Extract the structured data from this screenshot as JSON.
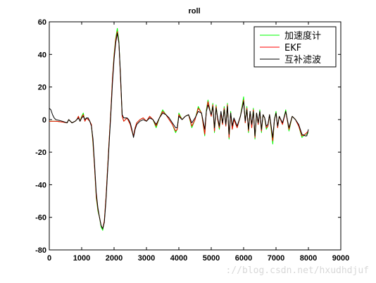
{
  "chart_data": {
    "type": "line",
    "title": "roll",
    "xlabel": "",
    "ylabel": "",
    "xlim": [
      0,
      9000
    ],
    "ylim": [
      -80,
      60
    ],
    "xticks": [
      0,
      1000,
      2000,
      3000,
      4000,
      5000,
      6000,
      7000,
      8000,
      9000
    ],
    "yticks": [
      -80,
      -60,
      -40,
      -20,
      0,
      20,
      40,
      60
    ],
    "xtick_labels": [
      "0",
      "1000",
      "2000",
      "3000",
      "4000",
      "5000",
      "6000",
      "7000",
      "8000",
      "9000"
    ],
    "ytick_labels": [
      "-80",
      "-60",
      "-40",
      "-20",
      "0",
      "20",
      "40",
      "60"
    ],
    "grid": false,
    "legend_position": "top-right",
    "series": [
      {
        "name": "加速度计",
        "color": "#00ff00",
        "x": [
          0,
          200,
          400,
          550,
          600,
          650,
          700,
          800,
          850,
          900,
          950,
          1000,
          1050,
          1100,
          1150,
          1200,
          1250,
          1300,
          1350,
          1400,
          1450,
          1500,
          1550,
          1600,
          1650,
          1700,
          1750,
          1800,
          1850,
          1900,
          1950,
          2000,
          2050,
          2100,
          2150,
          2200,
          2250,
          2300,
          2350,
          2400,
          2450,
          2500,
          2550,
          2600,
          2650,
          2700,
          2750,
          2800,
          2900,
          3000,
          3100,
          3200,
          3300,
          3400,
          3500,
          3600,
          3700,
          3800,
          3900,
          3950,
          4000,
          4100,
          4200,
          4300,
          4400,
          4500,
          4600,
          4700,
          4800,
          4850,
          4900,
          5000,
          5050,
          5100,
          5150,
          5200,
          5250,
          5300,
          5350,
          5400,
          5450,
          5500,
          5550,
          5600,
          5650,
          5700,
          5800,
          5900,
          6000,
          6050,
          6100,
          6150,
          6200,
          6250,
          6300,
          6350,
          6400,
          6450,
          6500,
          6550,
          6600,
          6650,
          6700,
          6750,
          6800,
          6900,
          6950,
          7000,
          7050,
          7100,
          7200,
          7300,
          7400,
          7500,
          7600,
          7700,
          7800,
          7900,
          7950,
          8000
        ],
        "y": [
          -1,
          -1,
          -1.5,
          -2,
          0,
          -1,
          -2,
          -1,
          0,
          2,
          -1,
          2,
          4,
          -1,
          1,
          0,
          -1,
          -3,
          -15,
          -30,
          -48,
          -56,
          -60,
          -66,
          -68,
          -62,
          -48,
          -30,
          -12,
          5,
          25,
          40,
          50,
          56,
          48,
          25,
          2,
          -1,
          0,
          1,
          -1,
          -3,
          -7,
          -10,
          -5,
          -2,
          -1,
          0,
          1,
          -1,
          2,
          0,
          -5,
          1,
          6,
          3,
          0,
          -3,
          -8,
          -6,
          4,
          0,
          2,
          3,
          -5,
          0,
          8,
          4,
          -10,
          6,
          12,
          2,
          10,
          -8,
          9,
          0,
          -6,
          4,
          -3,
          8,
          -4,
          10,
          -12,
          5,
          -6,
          0,
          -5,
          2,
          14,
          -2,
          8,
          -8,
          5,
          -5,
          7,
          -12,
          4,
          -3,
          6,
          -8,
          3,
          1,
          -6,
          -4,
          3,
          -15,
          0,
          5,
          -5,
          2,
          -3,
          6,
          -7,
          2,
          0,
          -4,
          -11,
          -9,
          -9,
          -8
        ]
      },
      {
        "name": "EKF",
        "color": "#ff0000",
        "x": [
          0,
          200,
          400,
          550,
          600,
          650,
          700,
          800,
          850,
          900,
          950,
          1000,
          1050,
          1100,
          1150,
          1200,
          1250,
          1300,
          1350,
          1400,
          1450,
          1500,
          1550,
          1600,
          1650,
          1700,
          1750,
          1800,
          1850,
          1900,
          1950,
          2000,
          2050,
          2100,
          2150,
          2200,
          2250,
          2300,
          2350,
          2400,
          2450,
          2500,
          2550,
          2600,
          2650,
          2700,
          2750,
          2800,
          2900,
          3000,
          3100,
          3200,
          3300,
          3400,
          3500,
          3600,
          3700,
          3800,
          3900,
          3950,
          4000,
          4100,
          4200,
          4300,
          4400,
          4500,
          4600,
          4700,
          4800,
          4850,
          4900,
          5000,
          5050,
          5100,
          5150,
          5200,
          5250,
          5300,
          5350,
          5400,
          5450,
          5500,
          5550,
          5600,
          5650,
          5700,
          5800,
          5900,
          6000,
          6050,
          6100,
          6150,
          6200,
          6250,
          6300,
          6350,
          6400,
          6450,
          6500,
          6550,
          6600,
          6650,
          6700,
          6750,
          6800,
          6900,
          6950,
          7000,
          7050,
          7100,
          7200,
          7300,
          7400,
          7500,
          7600,
          7700,
          7800,
          7900,
          7950,
          8000
        ],
        "y": [
          -1,
          -1,
          -1.5,
          -2,
          0,
          -1,
          -2,
          -1,
          0,
          2,
          -1,
          1.5,
          3,
          -1,
          1,
          0,
          -1,
          -3,
          -14,
          -30,
          -47,
          -55,
          -60,
          -65,
          -67,
          -62,
          -48,
          -30,
          -12,
          5,
          25,
          39,
          49,
          54,
          47,
          25,
          2,
          -1,
          0,
          1,
          -1,
          -3,
          -7,
          -10,
          -5,
          -2,
          -1,
          0,
          1,
          -1,
          2,
          0,
          -4,
          1,
          5,
          3,
          0,
          -3,
          -7,
          -6,
          3,
          0,
          2,
          3,
          -4,
          0,
          7,
          4,
          -9,
          5,
          11,
          2,
          9,
          -7,
          8,
          0,
          -5,
          4,
          -3,
          7,
          -4,
          9,
          -11,
          4,
          -6,
          0,
          -5,
          2,
          12,
          -2,
          7,
          -7,
          5,
          -5,
          6,
          -11,
          4,
          -3,
          5,
          -7,
          3,
          1,
          -5,
          -4,
          3,
          -13,
          0,
          4,
          -5,
          2,
          -3,
          5,
          -6,
          2,
          0,
          -4,
          -10,
          -9,
          -8,
          -7
        ]
      },
      {
        "name": "互补滤波",
        "color": "#000000",
        "x": [
          0,
          50,
          100,
          150,
          200,
          300,
          400,
          550,
          600,
          650,
          700,
          800,
          850,
          900,
          950,
          1000,
          1050,
          1100,
          1150,
          1200,
          1250,
          1300,
          1350,
          1400,
          1450,
          1500,
          1550,
          1600,
          1650,
          1700,
          1750,
          1800,
          1850,
          1900,
          1950,
          2000,
          2050,
          2100,
          2150,
          2200,
          2250,
          2300,
          2350,
          2400,
          2450,
          2500,
          2550,
          2600,
          2650,
          2700,
          2750,
          2800,
          2900,
          3000,
          3100,
          3200,
          3300,
          3400,
          3500,
          3600,
          3700,
          3800,
          3900,
          3950,
          4000,
          4100,
          4200,
          4300,
          4400,
          4500,
          4600,
          4700,
          4800,
          4850,
          4900,
          5000,
          5050,
          5100,
          5150,
          5200,
          5250,
          5300,
          5350,
          5400,
          5450,
          5500,
          5550,
          5600,
          5650,
          5700,
          5800,
          5900,
          6000,
          6050,
          6100,
          6150,
          6200,
          6250,
          6300,
          6350,
          6400,
          6450,
          6500,
          6550,
          6600,
          6650,
          6700,
          6750,
          6800,
          6900,
          6950,
          7000,
          7050,
          7100,
          7200,
          7300,
          7400,
          7500,
          7600,
          7700,
          7800,
          7900,
          7950,
          8000
        ],
        "y": [
          7,
          6,
          3,
          1,
          0,
          -0.5,
          -1,
          -2,
          0,
          -1,
          -2,
          -1,
          0,
          1,
          -1,
          1,
          2,
          0,
          1,
          1,
          -1,
          -4,
          -12,
          -28,
          -45,
          -54,
          -60,
          -65,
          -67,
          -63,
          -50,
          -32,
          -14,
          3,
          22,
          37,
          47,
          53,
          47,
          27,
          3,
          1,
          1,
          1,
          0,
          -2,
          -6,
          -11,
          -6,
          -3,
          -2,
          -1,
          0,
          -1,
          1,
          0,
          -3,
          1,
          4,
          3,
          1,
          -2,
          -5,
          -5,
          2,
          0,
          2,
          3,
          -2,
          1,
          5,
          4,
          -6,
          5,
          9,
          3,
          8,
          -5,
          7,
          1,
          -4,
          5,
          -2,
          6,
          -3,
          8,
          -9,
          4,
          -4,
          1,
          -4,
          2,
          11,
          -1,
          6,
          -6,
          5,
          -3,
          5,
          -10,
          4,
          -2,
          5,
          -6,
          3,
          1,
          -4,
          -3,
          3,
          -11,
          0,
          4,
          -4,
          2,
          -2,
          5,
          -5,
          2,
          0,
          -3,
          -9,
          -10,
          -10,
          -6
        ]
      }
    ]
  },
  "watermark": "://blog.csdn.net/hxudhdjuf"
}
